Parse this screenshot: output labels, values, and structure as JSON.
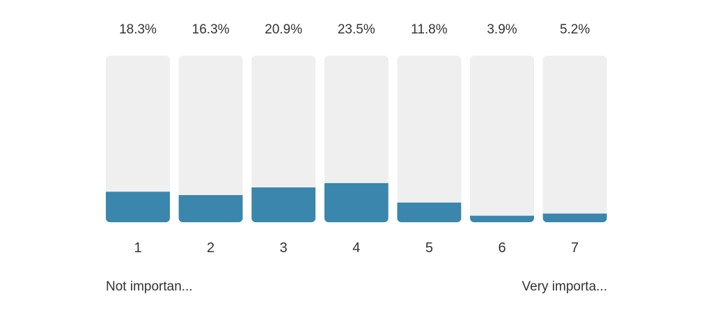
{
  "chart_data": {
    "type": "bar",
    "categories": [
      "1",
      "2",
      "3",
      "4",
      "5",
      "6",
      "7"
    ],
    "values": [
      18.3,
      16.3,
      20.9,
      23.5,
      11.8,
      3.9,
      5.2
    ],
    "value_labels": [
      "18.3%",
      "16.3%",
      "20.9%",
      "23.5%",
      "11.8%",
      "3.9%",
      "5.2%"
    ],
    "ylim": [
      0,
      100
    ],
    "grid": false,
    "scale_labels": {
      "low": "Not importan...",
      "high": "Very importa..."
    }
  },
  "colors": {
    "bar_fill": "#3a86ac",
    "bar_track": "#efefef",
    "text": "#333333"
  }
}
